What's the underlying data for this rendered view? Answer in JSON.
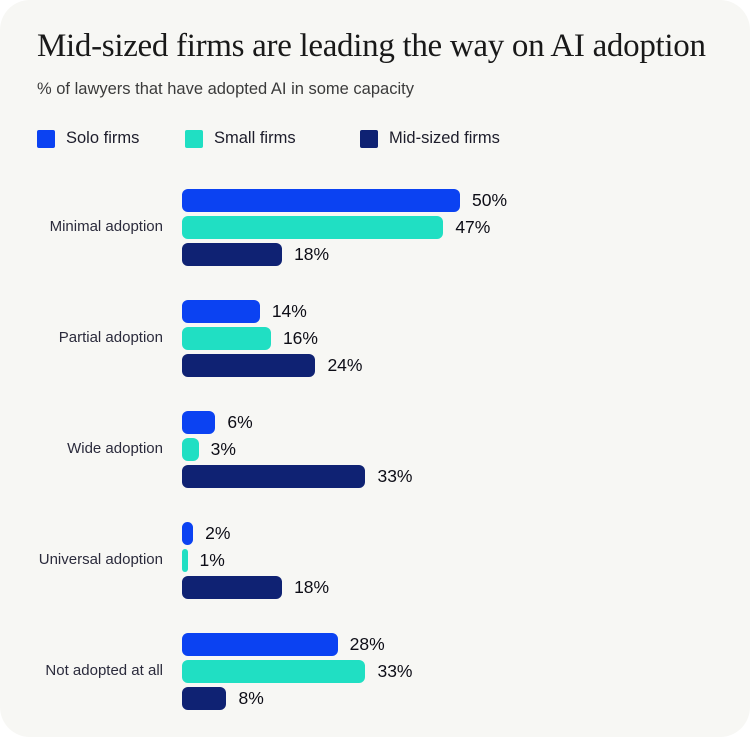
{
  "header": {
    "title": "Mid-sized firms are leading the way on AI adoption",
    "subtitle": "% of lawyers that have adopted AI in some capacity"
  },
  "chart_data": {
    "type": "bar",
    "orientation": "horizontal",
    "title": "Mid-sized firms are leading the way on AI adoption",
    "subtitle": "% of lawyers that have adopted AI in some capacity",
    "categories": [
      "Minimal adoption",
      "Partial adoption",
      "Wide adoption",
      "Universal adoption",
      "Not adopted at all"
    ],
    "series": [
      {
        "name": "Solo firms",
        "color": "#0B42F2",
        "values": [
          50,
          14,
          6,
          2,
          28
        ]
      },
      {
        "name": "Small firms",
        "color": "#20DFC3",
        "values": [
          47,
          16,
          3,
          1,
          33
        ]
      },
      {
        "name": "Mid-sized firms",
        "color": "#0F2273",
        "values": [
          18,
          24,
          33,
          18,
          8
        ]
      }
    ],
    "value_suffix": "%",
    "value_labels": true,
    "legend_position": "top",
    "grid": false,
    "xlim": [
      0,
      100
    ]
  },
  "colors": {
    "card_background": "#F7F7F4",
    "title": "#191919",
    "subtitle": "#3B3B3B",
    "category_label": "#2B2B3C",
    "value_label": "#0D0D16"
  }
}
